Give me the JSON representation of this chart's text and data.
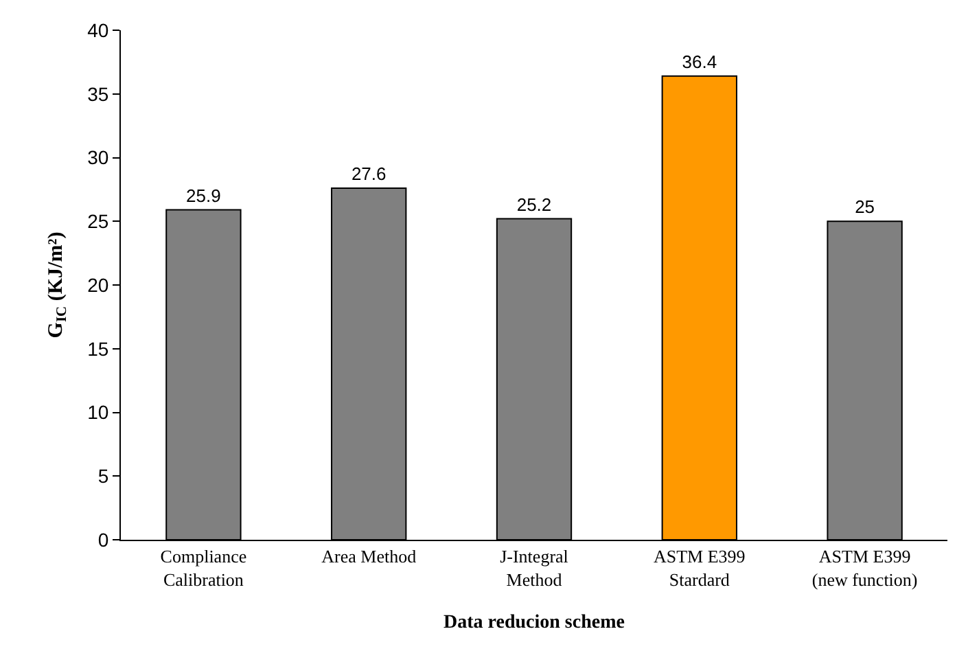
{
  "chart_data": {
    "type": "bar",
    "xlabel": "Data reducion scheme",
    "ylabel": "G$_{IC}$ (KJ/m²)",
    "categories": [
      "Compliance\nCalibration",
      "Area Method",
      "J-Integral\nMethod",
      "ASTM E399\nStardard",
      "ASTM E399\n(new function)"
    ],
    "values": [
      25.9,
      27.6,
      25.2,
      36.4,
      25
    ],
    "colors": [
      "#808080",
      "#808080",
      "#808080",
      "#ff9900",
      "#808080"
    ],
    "ylim": [
      0,
      40
    ],
    "yticks": [
      0,
      5,
      10,
      15,
      20,
      25,
      30,
      35,
      40
    ],
    "grid": false,
    "data_labels": true
  }
}
